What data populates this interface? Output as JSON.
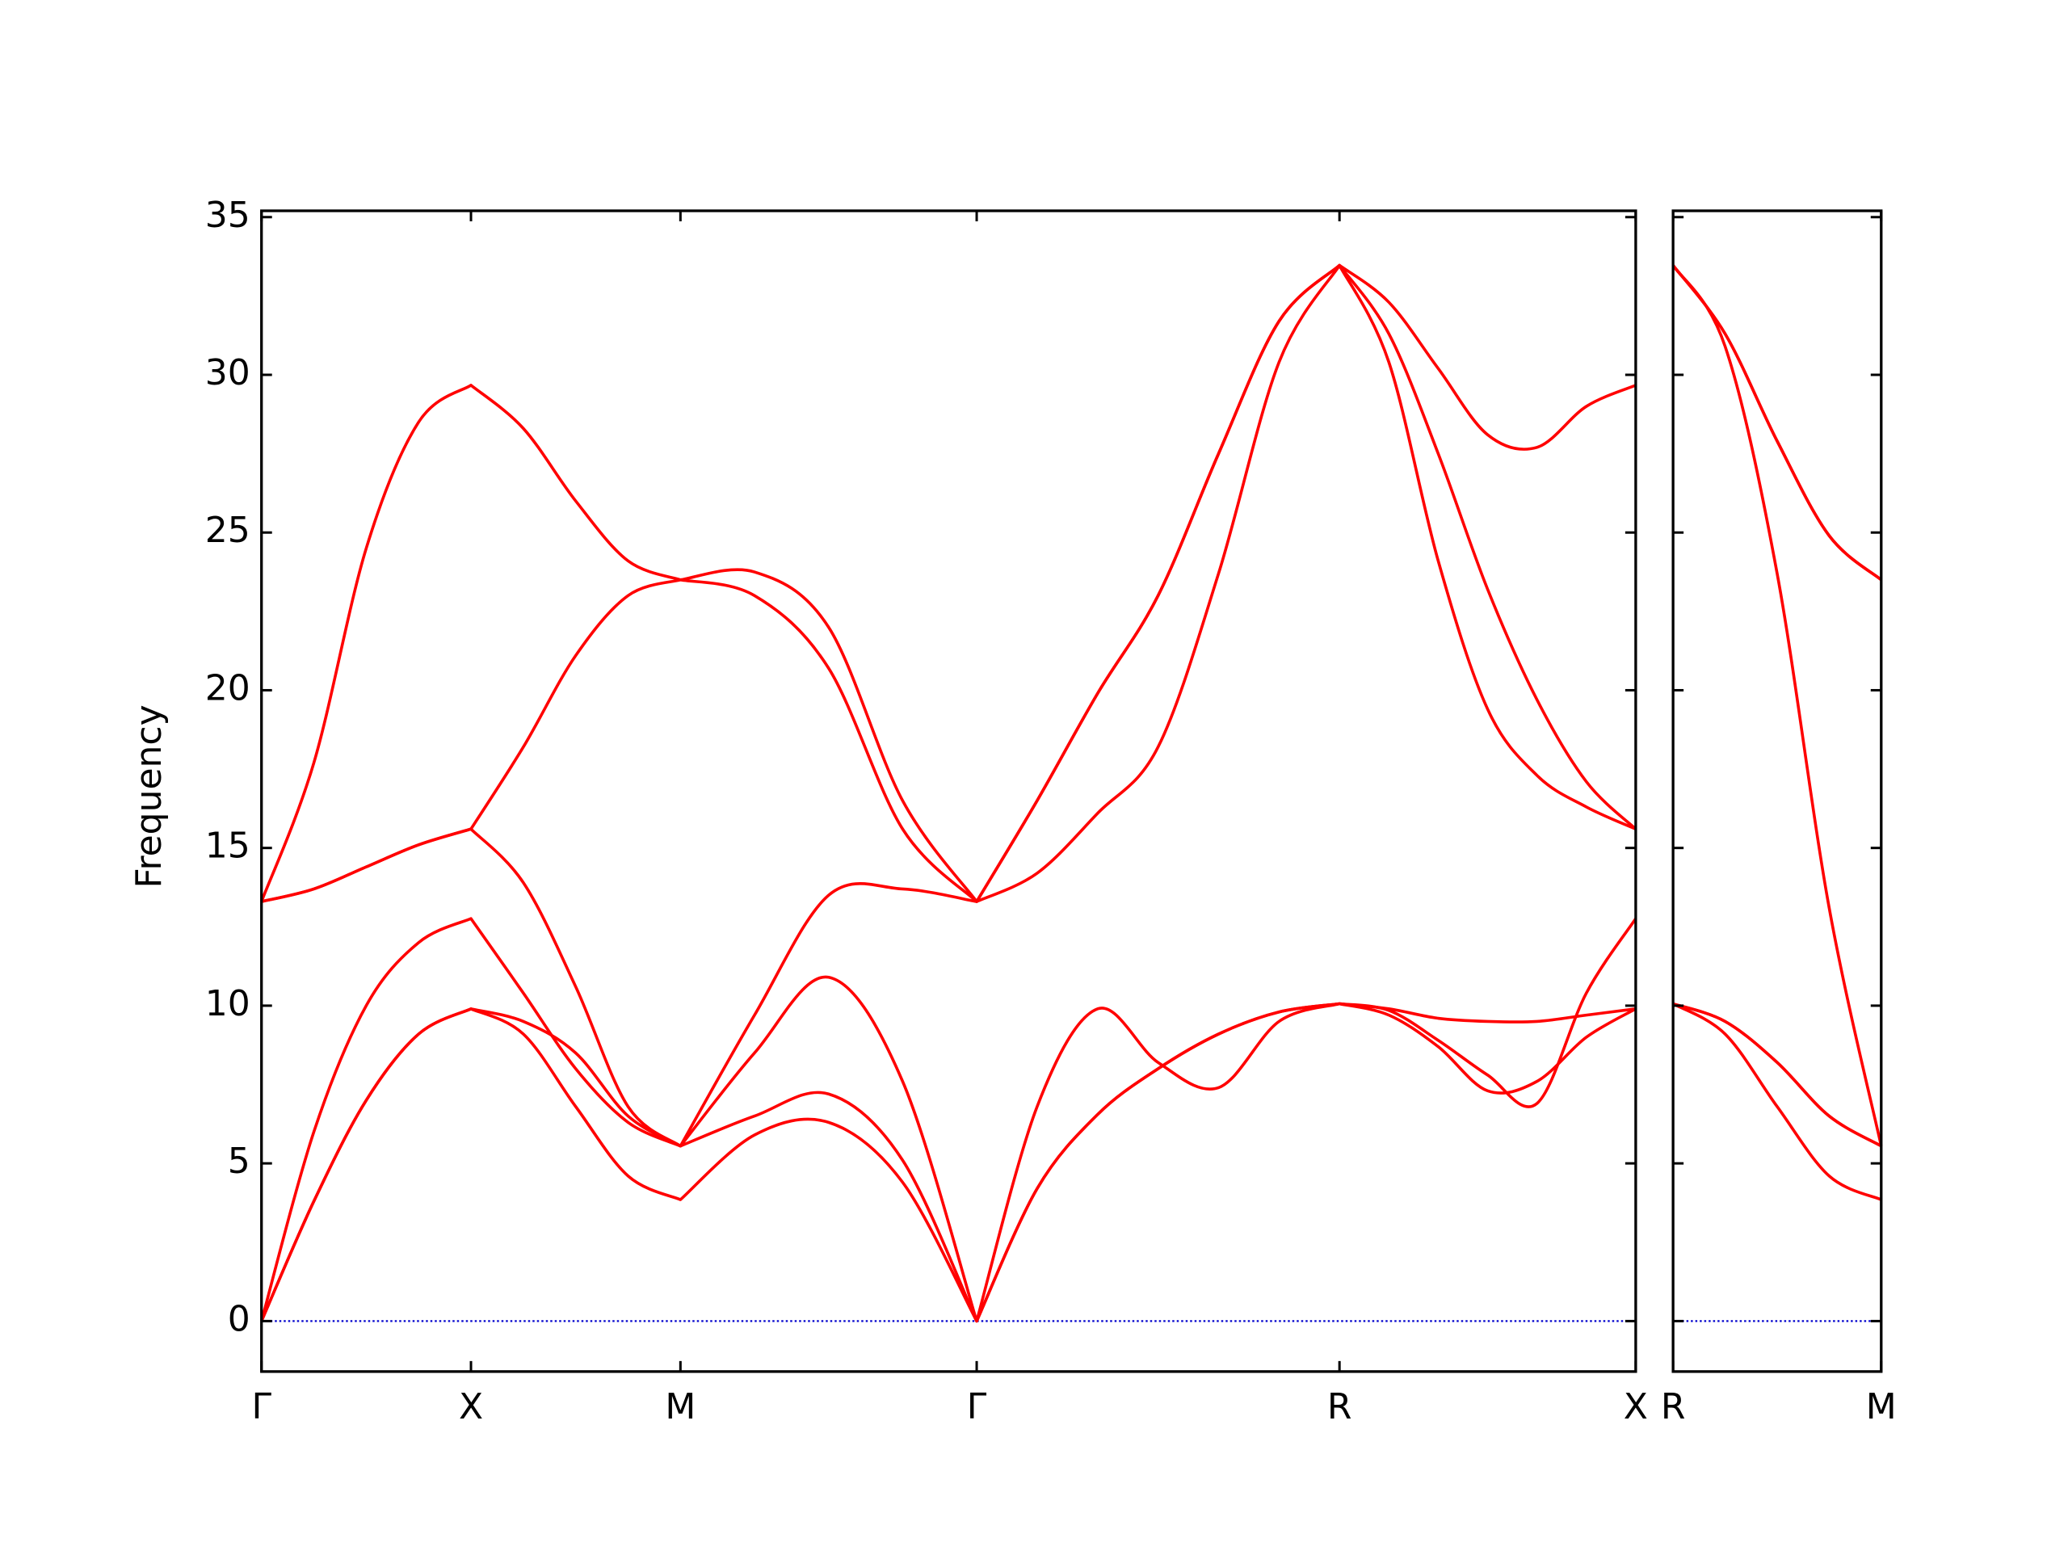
{
  "chart_data": [
    {
      "type": "line",
      "ylabel": "Frequency",
      "x": [
        0,
        0.125,
        0.25,
        0.375,
        0.5,
        0.625,
        0.75,
        0.875,
        1,
        1.1768,
        1.3536,
        1.5303,
        1.7071,
        1.8514,
        1.9958,
        2.1401,
        2.2844,
        2.4288,
        2.5731,
        2.691,
        2.8088,
        2.9267,
        3.0445,
        3.1624,
        3.2802
      ],
      "xlim": [
        0,
        3.2802
      ],
      "xticks": [
        {
          "value": 0,
          "label": "Γ"
        },
        {
          "value": 0.5,
          "label": "X"
        },
        {
          "value": 1,
          "label": "M"
        },
        {
          "value": 1.7071,
          "label": "Γ"
        },
        {
          "value": 2.5731,
          "label": "R"
        },
        {
          "value": 3.2802,
          "label": "X"
        }
      ],
      "ylim": [
        -1.6,
        35.2
      ],
      "yticks": [
        0,
        5,
        10,
        15,
        20,
        25,
        30,
        35
      ],
      "ytick_labels": true,
      "zero_line": {
        "value": 0,
        "color": "#0000cc"
      },
      "series": [
        {
          "color": "#ff0000",
          "values": [
            0,
            3.8,
            7.0,
            9.1,
            9.9,
            9.1,
            6.8,
            4.6,
            3.85,
            5.9,
            6.3,
            4.4,
            0,
            4.2,
            6.55,
            8.0,
            9.1,
            9.8,
            10.06,
            9.9,
            9.6,
            9.5,
            9.5,
            9.7,
            9.9
          ]
        },
        {
          "color": "#ff0000",
          "values": [
            0,
            3.8,
            7.0,
            9.1,
            9.9,
            9.5,
            8.5,
            6.5,
            5.55,
            6.5,
            7.2,
            5.1,
            0,
            4.2,
            6.55,
            8.0,
            9.1,
            9.8,
            10.06,
            9.7,
            8.7,
            7.3,
            7.6,
            9.0,
            9.9
          ]
        },
        {
          "color": "#ff0000",
          "values": [
            0,
            6.0,
            10.0,
            12.0,
            12.76,
            10.4,
            8.0,
            6.3,
            5.55,
            8.5,
            10.9,
            7.6,
            0,
            6.8,
            9.9,
            8.2,
            7.4,
            9.5,
            10.06,
            9.85,
            8.9,
            7.8,
            6.9,
            10.4,
            12.76
          ]
        },
        {
          "color": "#ff0000",
          "values": [
            13.3,
            13.7,
            14.4,
            15.1,
            15.6,
            13.9,
            10.6,
            6.8,
            5.55,
            9.7,
            13.5,
            13.7,
            13.3,
            14.2,
            16.1,
            18.2,
            23.7,
            30.4,
            33.47,
            30.4,
            24.1,
            19.4,
            17.3,
            16.3,
            15.6
          ]
        },
        {
          "color": "#ff0000",
          "values": [
            13.3,
            13.7,
            14.4,
            15.1,
            15.6,
            18.2,
            21.1,
            23.0,
            23.5,
            23.0,
            20.7,
            15.6,
            13.3,
            16.5,
            19.9,
            23.0,
            27.5,
            31.7,
            33.47,
            31.3,
            27.5,
            23.2,
            19.7,
            17.1,
            15.6
          ]
        },
        {
          "color": "#ff0000",
          "values": [
            13.3,
            17.7,
            24.5,
            28.5,
            29.67,
            28.3,
            26.0,
            24.1,
            23.5,
            23.75,
            22.0,
            16.5,
            13.3,
            16.5,
            19.9,
            23.0,
            27.5,
            31.7,
            33.47,
            32.3,
            30.2,
            28.1,
            27.7,
            29.0,
            29.67
          ]
        }
      ]
    },
    {
      "type": "line",
      "x": [
        0,
        0.125,
        0.25,
        0.375,
        0.5
      ],
      "xlim": [
        0,
        0.5
      ],
      "xticks": [
        {
          "value": 0,
          "label": "R"
        },
        {
          "value": 0.5,
          "label": "M"
        }
      ],
      "ylim": [
        -1.6,
        35.2
      ],
      "yticks": [
        0,
        5,
        10,
        15,
        20,
        25,
        30,
        35
      ],
      "ytick_labels": false,
      "zero_line": {
        "value": 0,
        "color": "#0000cc"
      },
      "series": [
        {
          "color": "#ff0000",
          "values": [
            10.06,
            9.1,
            6.8,
            4.6,
            3.85
          ]
        },
        {
          "color": "#ff0000",
          "values": [
            10.06,
            9.5,
            8.2,
            6.5,
            5.55
          ]
        },
        {
          "color": "#ff0000",
          "values": [
            10.06,
            9.5,
            8.2,
            6.5,
            5.55
          ]
        },
        {
          "color": "#ff0000",
          "values": [
            33.47,
            30.9,
            23.7,
            13.1,
            5.55
          ]
        },
        {
          "color": "#ff0000",
          "values": [
            33.47,
            31.3,
            27.9,
            24.9,
            23.5
          ]
        },
        {
          "color": "#ff0000",
          "values": [
            33.47,
            31.3,
            27.9,
            24.9,
            23.5
          ]
        }
      ]
    }
  ]
}
